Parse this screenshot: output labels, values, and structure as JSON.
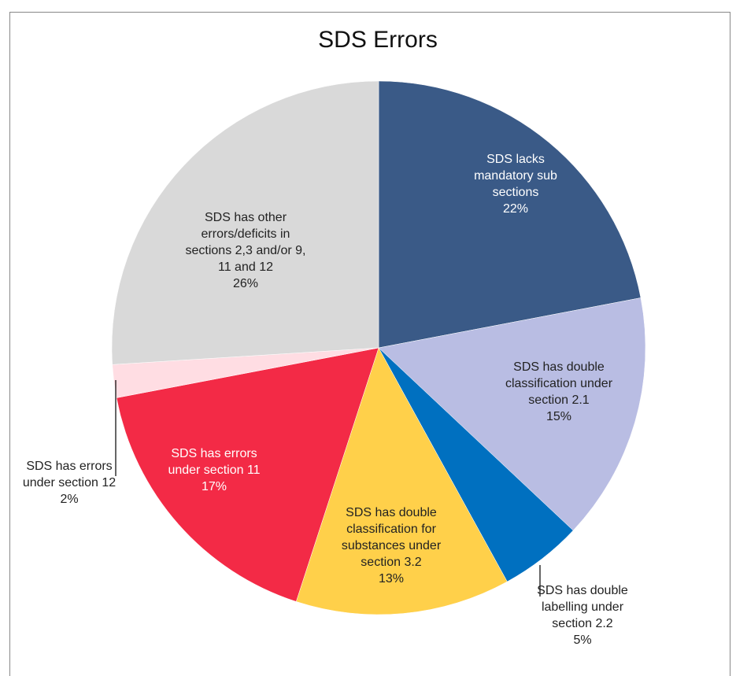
{
  "chart_data": {
    "type": "pie",
    "title": "SDS Errors",
    "categories": [
      "SDS lacks mandatory sub sections",
      "SDS has double classification under section 2.1",
      "SDS has double labelling under section 2.2",
      "SDS has double classification for substances under section 3.2",
      "SDS has errors under section 11",
      "SDS has errors under section 12",
      "SDS has other errors/deficits in sections 2,3 and/or 9, 11 and 12"
    ],
    "values": [
      22,
      15,
      5,
      13,
      17,
      2,
      26
    ],
    "value_labels": [
      "22%",
      "15%",
      "5%",
      "13%",
      "17%",
      "2%",
      "26%"
    ],
    "colors": [
      "#3a5a87",
      "#b9bde3",
      "#0070c0",
      "#ffd04a",
      "#f32a46",
      "#ffdde3",
      "#d9d9d9"
    ]
  }
}
